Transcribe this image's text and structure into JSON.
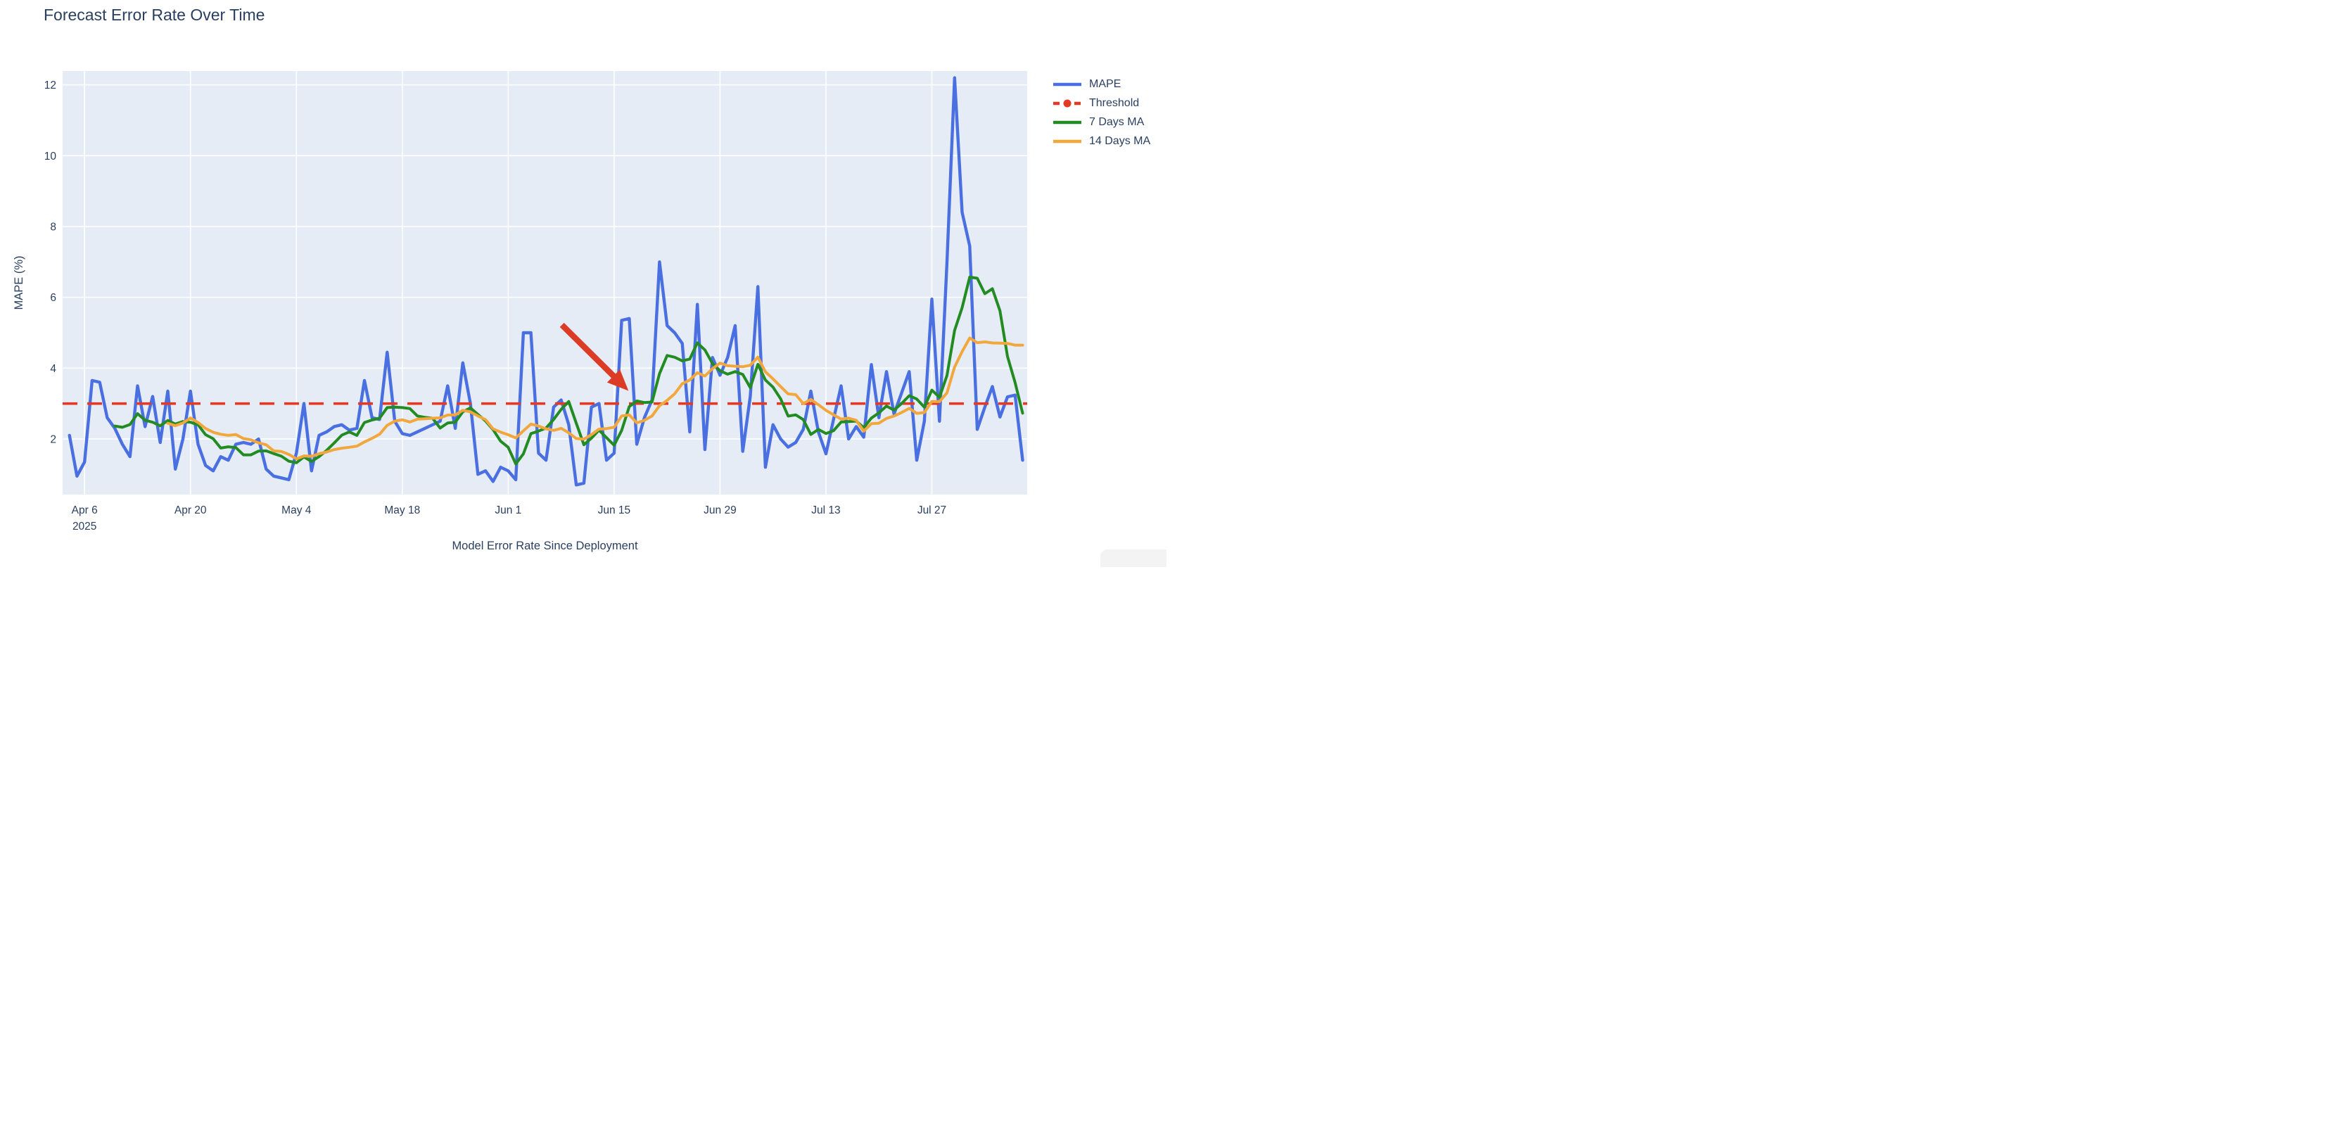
{
  "page": {
    "background": "#ffffff"
  },
  "chart_data": {
    "type": "line",
    "title": "Forecast Error Rate Over Time",
    "xlabel": "Model Error Rate Since Deployment",
    "ylabel": "MAPE (%)",
    "plot_bg": "#e5ecf6",
    "grid_color": "#ffffff",
    "font_color": "#2a3f5f",
    "legend_position": "top-right-outside",
    "grid": true,
    "ylim": [
      0.43,
      12.39
    ],
    "xlim_index": [
      -0.9,
      126.6
    ],
    "y_ticks": [
      2,
      4,
      6,
      8,
      10,
      12
    ],
    "x_ticks": [
      {
        "index": 2,
        "label": "Apr 6",
        "sub": "2025"
      },
      {
        "index": 16,
        "label": "Apr 20"
      },
      {
        "index": 30,
        "label": "May 4"
      },
      {
        "index": 44,
        "label": "May 18"
      },
      {
        "index": 58,
        "label": "Jun 1"
      },
      {
        "index": 72,
        "label": "Jun 15"
      },
      {
        "index": 86,
        "label": "Jun 29"
      },
      {
        "index": 100,
        "label": "Jul 13"
      },
      {
        "index": 114,
        "label": "Jul 27"
      }
    ],
    "threshold": {
      "name": "Threshold",
      "value": 3.0,
      "color": "#e33a26",
      "dash": [
        21,
        14
      ],
      "width": 3.6
    },
    "series": [
      {
        "name": "MAPE",
        "color": "#4a6fe0",
        "width": 4.4,
        "values": [
          2.1,
          0.95,
          1.35,
          3.65,
          3.6,
          2.6,
          2.3,
          1.85,
          1.5,
          3.5,
          2.35,
          3.2,
          1.9,
          3.35,
          1.15,
          2.0,
          3.35,
          1.85,
          1.25,
          1.1,
          1.5,
          1.4,
          1.85,
          1.9,
          1.85,
          2.0,
          1.15,
          0.95,
          0.9,
          0.85,
          1.6,
          3.0,
          1.1,
          2.1,
          2.2,
          2.35,
          2.4,
          2.25,
          2.3,
          3.65,
          2.6,
          2.55,
          4.45,
          2.5,
          2.15,
          2.1,
          2.2,
          2.3,
          2.4,
          2.5,
          3.5,
          2.3,
          4.15,
          3.0,
          1.0,
          1.1,
          0.8,
          1.2,
          1.1,
          0.85,
          5.0,
          5.0,
          1.6,
          1.4,
          2.9,
          3.1,
          2.4,
          0.7,
          0.75,
          2.9,
          3.0,
          1.4,
          1.6,
          5.35,
          5.4,
          1.85,
          2.6,
          3.1,
          7.0,
          5.2,
          5.0,
          4.7,
          2.2,
          5.8,
          1.7,
          4.3,
          3.8,
          4.3,
          5.2,
          1.65,
          3.2,
          6.3,
          1.2,
          2.4,
          2.0,
          1.77,
          1.9,
          2.27,
          3.35,
          2.2,
          1.58,
          2.55,
          3.5,
          2.0,
          2.35,
          2.05,
          4.1,
          2.6,
          3.9,
          2.7,
          3.3,
          3.9,
          1.4,
          2.5,
          5.95,
          2.5,
          7.0,
          12.2,
          8.4,
          7.45,
          2.27,
          2.9,
          3.48,
          2.62,
          3.19,
          3.24,
          1.4
        ]
      },
      {
        "name": "7 Days MA",
        "color": "#228b22",
        "width": 4.0,
        "derived": "rolling_mean",
        "window": 7
      },
      {
        "name": "14 Days MA",
        "color": "#f2a73d",
        "width": 4.0,
        "derived": "rolling_mean",
        "window": 14
      }
    ],
    "legend": [
      {
        "label": "MAPE",
        "color": "#4a6fe0",
        "style": "solid"
      },
      {
        "label": "Threshold",
        "color": "#e33a26",
        "style": "dash-dot"
      },
      {
        "label": "7 Days MA",
        "color": "#228b22",
        "style": "solid"
      },
      {
        "label": "14 Days MA",
        "color": "#f2a73d",
        "style": "solid"
      }
    ],
    "annotation_arrow": {
      "from_index": 65.1,
      "from_value": 5.22,
      "to_index": 73.9,
      "to_value": 3.36,
      "color": "#dc3b26"
    }
  }
}
